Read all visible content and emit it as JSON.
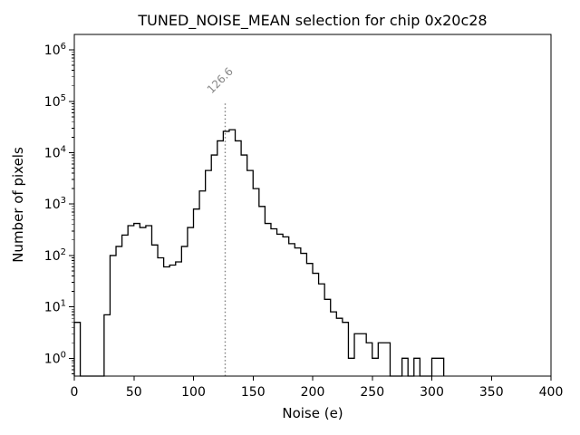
{
  "chart_data": {
    "type": "bar",
    "subtype": "step-histogram",
    "title": "TUNED_NOISE_MEAN selection for chip 0x20c28",
    "xlabel": "Noise (e)",
    "ylabel": "Number of pixels",
    "xlim": [
      0,
      400
    ],
    "ylim": [
      0.45,
      2000000
    ],
    "yscale": "log",
    "grid": false,
    "xticks": [
      0,
      50,
      100,
      150,
      200,
      250,
      300,
      350,
      400
    ],
    "ytick_exponents": [
      0,
      1,
      2,
      3,
      4,
      5,
      6
    ],
    "bin_start": 0,
    "bin_width": 5,
    "counts": [
      5,
      0,
      0,
      0,
      0,
      7,
      100,
      150,
      250,
      380,
      420,
      350,
      380,
      160,
      90,
      60,
      65,
      75,
      150,
      350,
      800,
      1800,
      4500,
      9000,
      17000,
      26000,
      28000,
      17000,
      9000,
      4500,
      2000,
      900,
      420,
      330,
      260,
      230,
      170,
      140,
      110,
      70,
      45,
      28,
      14,
      8,
      6,
      5,
      1,
      3,
      3,
      2,
      1,
      2,
      2,
      0,
      0,
      1,
      0,
      1,
      0,
      0,
      1,
      1
    ],
    "line_color": "#000000",
    "vline": {
      "x": 126.6,
      "label": "126.6",
      "top_value": 100000,
      "color": "#808080",
      "style": "dotted"
    }
  }
}
